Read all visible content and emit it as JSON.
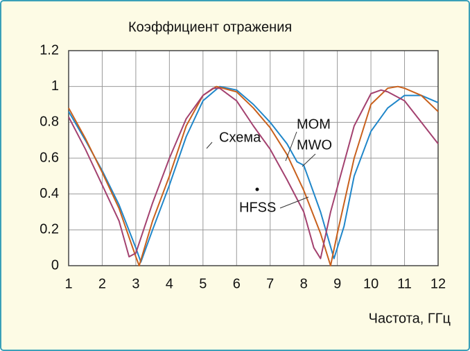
{
  "chart_data": {
    "type": "line",
    "title": "Коэффициент отражения",
    "x_label": "Частота, ГГц",
    "xlim": [
      1,
      12
    ],
    "xticks": [
      1,
      2,
      3,
      4,
      5,
      6,
      7,
      8,
      9,
      10,
      11,
      12
    ],
    "ylim": [
      0,
      1.2
    ],
    "yticks": [
      0,
      0.2,
      0.4,
      0.6,
      0.8,
      1,
      1.2
    ],
    "grid": true,
    "annotations": [
      "Схема"
    ],
    "series": [
      {
        "name": "MOM",
        "color": "#1f86c9",
        "x": [
          1,
          1.5,
          2,
          2.5,
          3,
          3.15,
          3.5,
          4,
          4.5,
          5,
          5.5,
          6,
          6.5,
          7,
          7.5,
          7.8,
          8,
          8.5,
          8.9,
          9.2,
          9.5,
          10,
          10.5,
          11,
          11.5,
          12
        ],
        "values": [
          0.86,
          0.7,
          0.53,
          0.34,
          0.1,
          0.02,
          0.2,
          0.45,
          0.72,
          0.92,
          1.0,
          0.98,
          0.9,
          0.8,
          0.68,
          0.58,
          0.56,
          0.3,
          0.04,
          0.22,
          0.5,
          0.75,
          0.88,
          0.95,
          0.95,
          0.91
        ]
      },
      {
        "name": "MWO",
        "color": "#c8601c",
        "x": [
          1,
          1.5,
          2,
          2.5,
          3,
          3.1,
          3.5,
          4,
          4.5,
          5,
          5.4,
          6,
          6.5,
          7,
          7.5,
          8,
          8.5,
          8.8,
          9,
          9.5,
          10,
          10.5,
          10.8,
          11,
          11.5,
          12
        ],
        "values": [
          0.88,
          0.71,
          0.52,
          0.32,
          0.05,
          0.0,
          0.25,
          0.5,
          0.78,
          0.95,
          1.0,
          0.97,
          0.88,
          0.77,
          0.62,
          0.42,
          0.18,
          0.0,
          0.18,
          0.6,
          0.9,
          0.99,
          1.0,
          0.99,
          0.95,
          0.86
        ]
      },
      {
        "name": "HFSS",
        "color": "#a3416f",
        "x": [
          1,
          1.5,
          2,
          2.5,
          2.8,
          3,
          3.5,
          4,
          4.5,
          5,
          5.3,
          5.5,
          6,
          6.5,
          7,
          7.5,
          8,
          8.3,
          8.5,
          8.8,
          9.5,
          10,
          10.3,
          10.5,
          11,
          11.5,
          12
        ],
        "values": [
          0.83,
          0.65,
          0.45,
          0.25,
          0.05,
          0.07,
          0.35,
          0.6,
          0.82,
          0.95,
          0.99,
          0.99,
          0.92,
          0.78,
          0.65,
          0.48,
          0.3,
          0.1,
          0.04,
          0.3,
          0.78,
          0.96,
          0.98,
          0.97,
          0.92,
          0.8,
          0.68
        ]
      }
    ]
  }
}
